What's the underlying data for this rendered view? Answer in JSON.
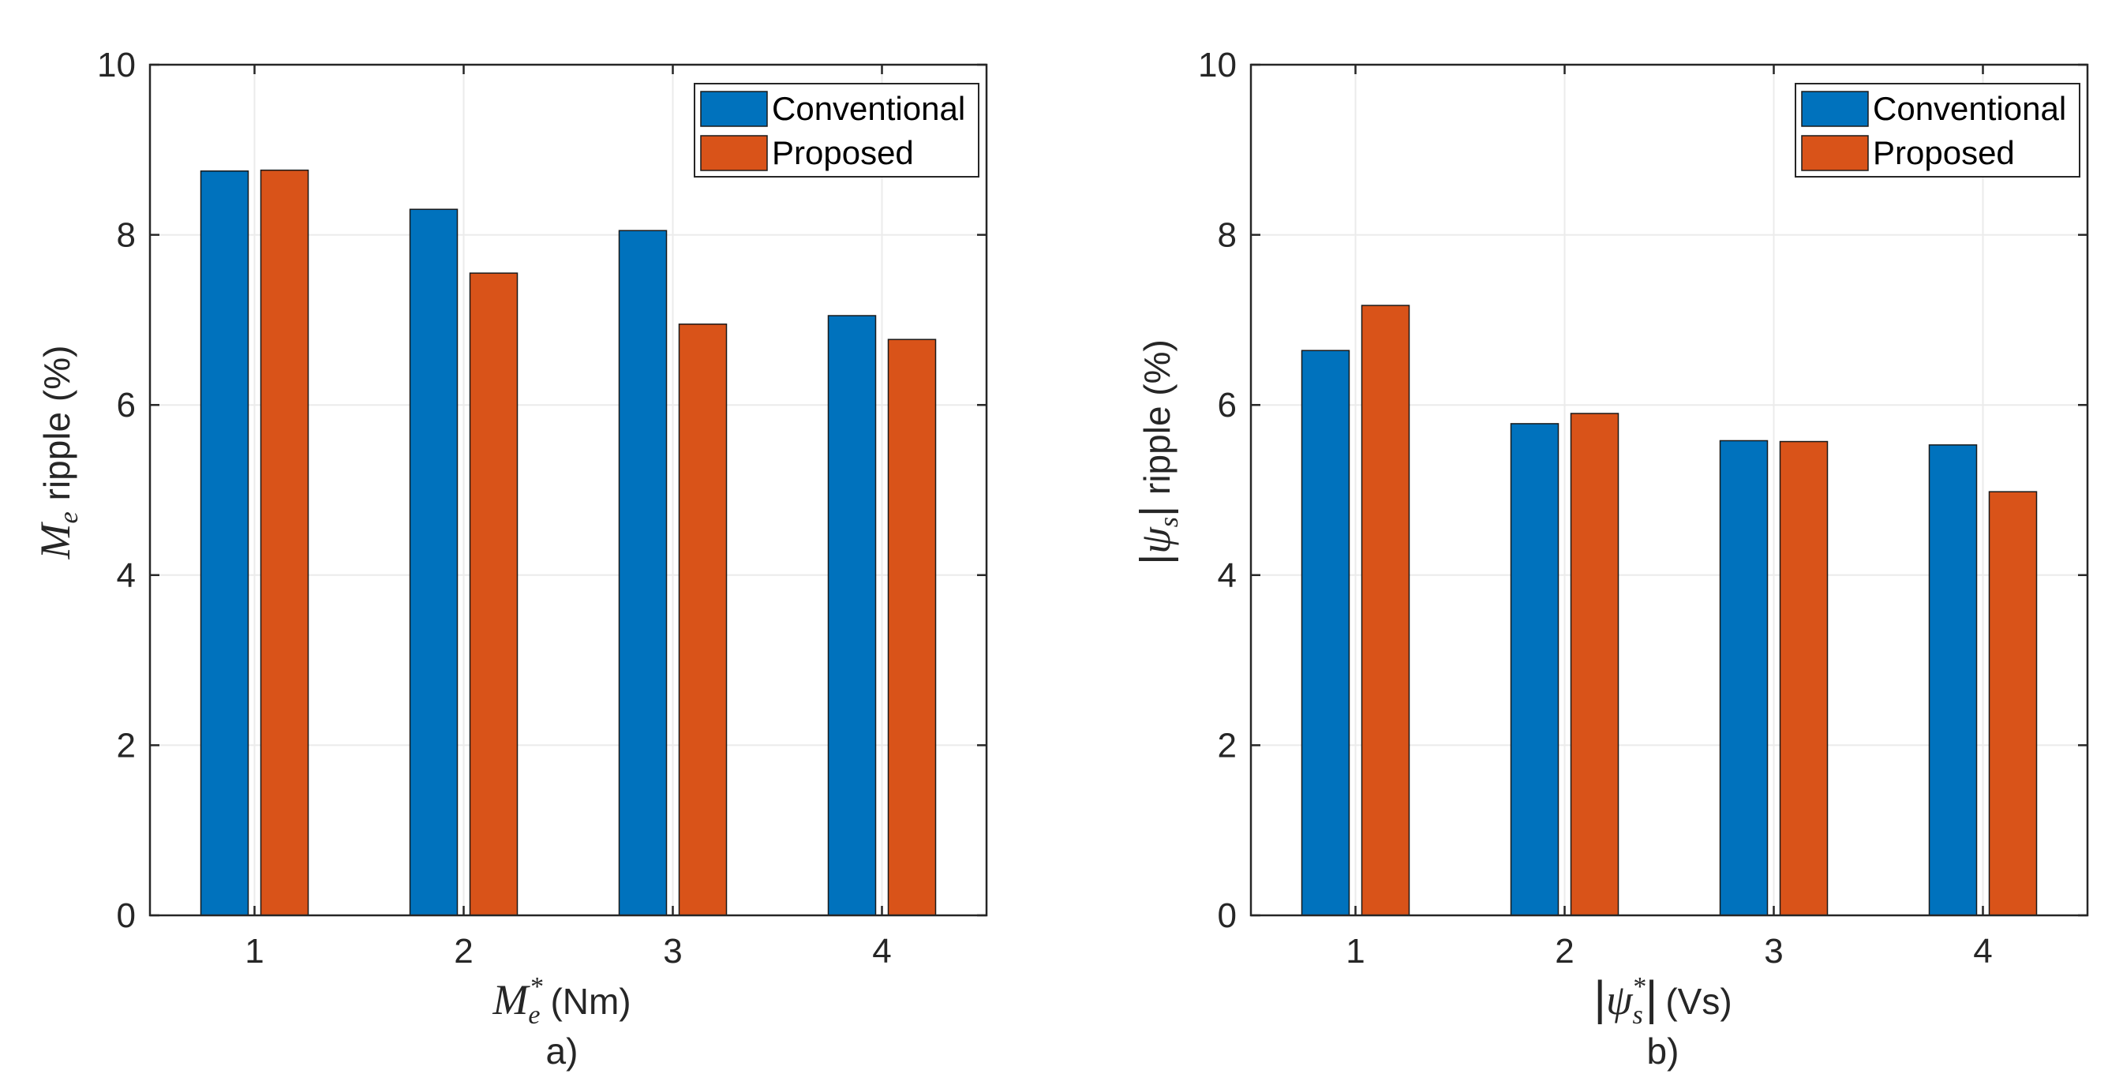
{
  "colors": {
    "conventional": "#0072BD",
    "proposed": "#D95319"
  },
  "legend": [
    "Conventional",
    "Proposed"
  ],
  "charts": [
    {
      "ylabel_symbol": "M",
      "ylabel_sub": "e",
      "ylabel_text": "ripple (%)",
      "xlabel_symbol": "M",
      "xlabel_sub": "e",
      "xlabel_sup": "*",
      "xlabel_unit": "(Nm)",
      "panel_label": "a)"
    },
    {
      "ylabel_symbol": "ψ",
      "ylabel_sub": "s",
      "ylabel_text": "ripple (%)",
      "xlabel_symbol": "ψ",
      "xlabel_sub": "s",
      "xlabel_sup": "*",
      "xlabel_unit": "(Vs)",
      "panel_label": "b)"
    }
  ],
  "chart_data": [
    {
      "type": "bar",
      "categories": [
        "1",
        "2",
        "3",
        "4"
      ],
      "series": [
        {
          "name": "Conventional",
          "values": [
            8.75,
            8.3,
            8.05,
            7.05
          ]
        },
        {
          "name": "Proposed",
          "values": [
            8.76,
            7.55,
            6.95,
            6.77
          ]
        }
      ],
      "ylim": [
        0,
        10
      ],
      "yticks": [
        0,
        2,
        4,
        6,
        8,
        10
      ],
      "grid": true,
      "legend_position": "top-right"
    },
    {
      "type": "bar",
      "categories": [
        "1",
        "2",
        "3",
        "4"
      ],
      "series": [
        {
          "name": "Conventional",
          "values": [
            6.64,
            5.78,
            5.58,
            5.53
          ]
        },
        {
          "name": "Proposed",
          "values": [
            7.17,
            5.9,
            5.57,
            4.98
          ]
        }
      ],
      "ylim": [
        0,
        10
      ],
      "yticks": [
        0,
        2,
        4,
        6,
        8,
        10
      ],
      "grid": true,
      "legend_position": "top-right"
    }
  ]
}
